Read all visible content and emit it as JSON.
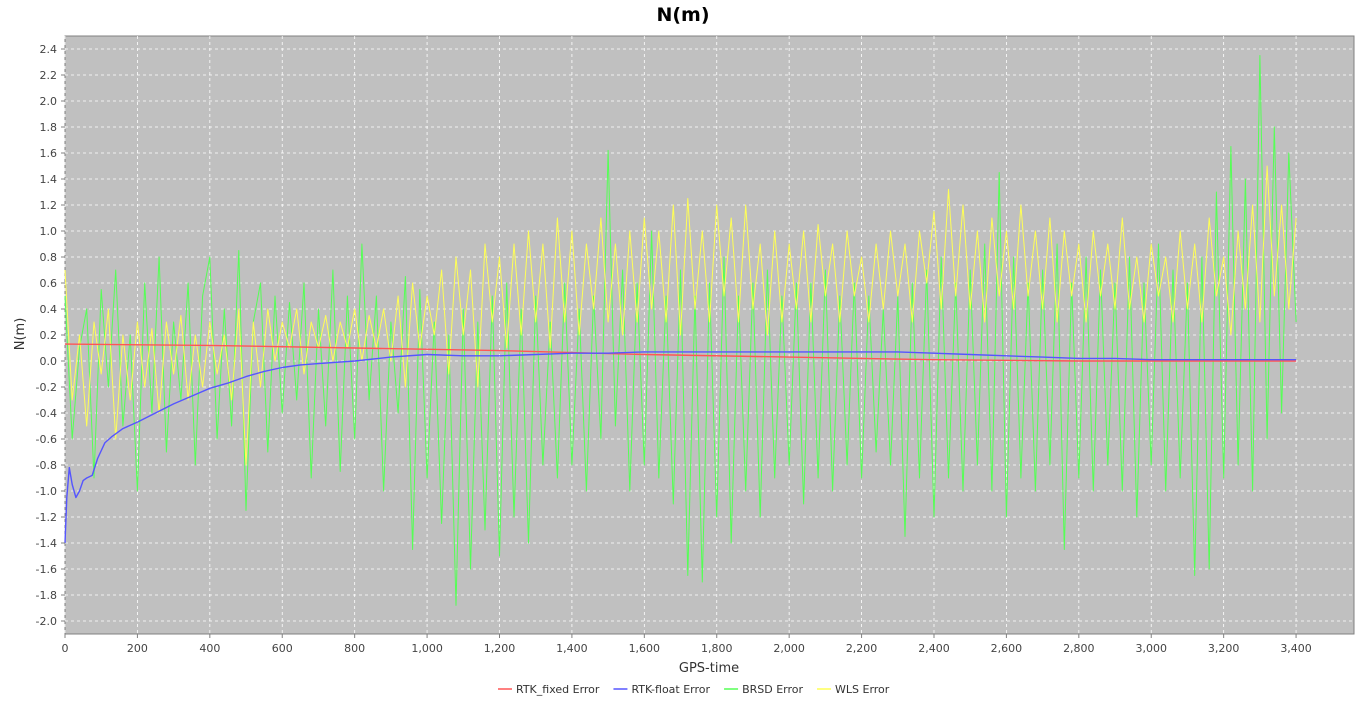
{
  "chart_data": {
    "type": "line",
    "title": "N(m)",
    "xlabel": "GPS-time",
    "ylabel": "N(m)",
    "xlim": [
      0,
      3560
    ],
    "ylim": [
      -2.1,
      2.5
    ],
    "x_ticks": [
      0,
      200,
      400,
      600,
      800,
      1000,
      1200,
      1400,
      1600,
      1800,
      2000,
      2200,
      2400,
      2600,
      2800,
      3000,
      3200,
      3400
    ],
    "x_tick_labels": [
      "0",
      "200",
      "400",
      "600",
      "800",
      "1,000",
      "1,200",
      "1,400",
      "1,600",
      "1,800",
      "2,000",
      "2,200",
      "2,400",
      "2,600",
      "2,800",
      "3,000",
      "3,200",
      "3,400"
    ],
    "y_ticks": [
      -2.0,
      -1.8,
      -1.6,
      -1.4,
      -1.2,
      -1.0,
      -0.8,
      -0.6,
      -0.4,
      -0.2,
      0.0,
      0.2,
      0.4,
      0.6,
      0.8,
      1.0,
      1.2,
      1.4,
      1.6,
      1.8,
      2.0,
      2.2,
      2.4
    ],
    "y_tick_labels": [
      "-2.0",
      "-1.8",
      "-1.6",
      "-1.4",
      "-1.2",
      "-1.0",
      "-0.8",
      "-0.6",
      "-0.4",
      "-0.2",
      "0.0",
      "0.2",
      "0.4",
      "0.6",
      "0.8",
      "1.0",
      "1.2",
      "1.4",
      "1.6",
      "1.8",
      "2.0",
      "2.2",
      "2.4"
    ],
    "grid": true,
    "background": "#c0c0c0",
    "legend_position": "bottom",
    "series": [
      {
        "name": "RTK_fixed Error",
        "color": "#ff5555",
        "x": [
          0,
          400,
          800,
          1200,
          1600,
          2000,
          2400,
          2800,
          3200,
          3400
        ],
        "y": [
          0.13,
          0.12,
          0.1,
          0.08,
          0.05,
          0.03,
          0.01,
          0.0,
          0.0,
          0.0
        ]
      },
      {
        "name": "RTK-float Error",
        "color": "#5555ff",
        "x": [
          0,
          5,
          12,
          20,
          30,
          40,
          50,
          60,
          75,
          90,
          110,
          130,
          160,
          200,
          250,
          300,
          350,
          400,
          450,
          500,
          550,
          600,
          650,
          700,
          800,
          900,
          1000,
          1100,
          1200,
          1300,
          1400,
          1500,
          1600,
          1700,
          1800,
          1900,
          2000,
          2100,
          2200,
          2300,
          2400,
          2500,
          2600,
          2700,
          2800,
          2900,
          3000,
          3100,
          3200,
          3300,
          3400
        ],
        "y": [
          -1.4,
          -1.05,
          -0.82,
          -0.95,
          -1.05,
          -1.0,
          -0.92,
          -0.9,
          -0.88,
          -0.75,
          -0.63,
          -0.58,
          -0.52,
          -0.47,
          -0.4,
          -0.33,
          -0.27,
          -0.21,
          -0.17,
          -0.12,
          -0.08,
          -0.05,
          -0.03,
          -0.02,
          0.0,
          0.03,
          0.05,
          0.04,
          0.04,
          0.05,
          0.06,
          0.06,
          0.07,
          0.07,
          0.07,
          0.07,
          0.07,
          0.07,
          0.07,
          0.07,
          0.06,
          0.05,
          0.04,
          0.03,
          0.02,
          0.02,
          0.01,
          0.01,
          0.01,
          0.01,
          0.01
        ]
      },
      {
        "name": "BRSD Error",
        "color": "#55ff55",
        "x": [
          0,
          20,
          40,
          60,
          80,
          100,
          120,
          140,
          160,
          180,
          200,
          220,
          240,
          260,
          280,
          300,
          320,
          340,
          360,
          380,
          400,
          420,
          440,
          460,
          480,
          500,
          520,
          540,
          560,
          580,
          600,
          620,
          640,
          660,
          680,
          700,
          720,
          740,
          760,
          780,
          800,
          820,
          840,
          860,
          880,
          900,
          920,
          940,
          960,
          980,
          1000,
          1020,
          1040,
          1060,
          1080,
          1100,
          1120,
          1140,
          1160,
          1180,
          1200,
          1220,
          1240,
          1260,
          1280,
          1300,
          1320,
          1340,
          1360,
          1380,
          1400,
          1420,
          1440,
          1460,
          1480,
          1500,
          1520,
          1540,
          1560,
          1580,
          1600,
          1620,
          1640,
          1660,
          1680,
          1700,
          1720,
          1740,
          1760,
          1780,
          1800,
          1820,
          1840,
          1860,
          1880,
          1900,
          1920,
          1940,
          1960,
          1980,
          2000,
          2020,
          2040,
          2060,
          2080,
          2100,
          2120,
          2140,
          2160,
          2180,
          2200,
          2220,
          2240,
          2260,
          2280,
          2300,
          2320,
          2340,
          2360,
          2380,
          2400,
          2420,
          2440,
          2460,
          2480,
          2500,
          2520,
          2540,
          2560,
          2580,
          2600,
          2620,
          2640,
          2660,
          2680,
          2700,
          2720,
          2740,
          2760,
          2780,
          2800,
          2820,
          2840,
          2860,
          2880,
          2900,
          2920,
          2940,
          2960,
          2980,
          3000,
          3020,
          3040,
          3060,
          3080,
          3100,
          3120,
          3140,
          3160,
          3180,
          3200,
          3220,
          3240,
          3260,
          3280,
          3300,
          3320,
          3340,
          3360,
          3380,
          3400
        ],
        "y": [
          0.5,
          -0.6,
          0.1,
          0.4,
          -0.9,
          0.55,
          -0.2,
          0.7,
          -0.5,
          0.2,
          -1.0,
          0.6,
          -0.4,
          0.8,
          -0.7,
          0.3,
          -0.3,
          0.6,
          -0.8,
          0.5,
          0.8,
          -0.6,
          0.4,
          -0.5,
          0.85,
          -1.15,
          0.3,
          0.6,
          -0.7,
          0.5,
          -0.4,
          0.45,
          -0.3,
          0.6,
          -0.9,
          0.4,
          -0.5,
          0.7,
          -0.85,
          0.5,
          -0.6,
          0.9,
          -0.3,
          0.5,
          -1.0,
          0.3,
          -0.4,
          0.65,
          -1.45,
          0.55,
          -0.9,
          0.3,
          -1.25,
          0.2,
          -1.88,
          0.4,
          -1.6,
          0.3,
          -1.3,
          0.5,
          -1.5,
          0.6,
          -1.2,
          0.4,
          -1.4,
          0.5,
          -0.8,
          0.3,
          -0.9,
          0.6,
          -0.8,
          0.4,
          -1.0,
          0.5,
          -0.6,
          1.62,
          -0.5,
          0.7,
          -1.0,
          0.6,
          -0.8,
          1.0,
          -0.9,
          0.5,
          -1.1,
          0.7,
          -1.65,
          0.5,
          -1.7,
          0.6,
          -1.2,
          0.8,
          -1.4,
          0.5,
          -1.0,
          0.6,
          -1.2,
          0.7,
          -0.9,
          0.5,
          -0.8,
          0.6,
          -1.1,
          0.6,
          -0.9,
          0.7,
          -1.0,
          0.5,
          -0.8,
          0.6,
          -0.9,
          0.5,
          -0.7,
          0.4,
          -0.8,
          0.5,
          -1.35,
          0.6,
          -0.9,
          0.7,
          -1.2,
          0.8,
          -0.9,
          0.6,
          -1.0,
          0.7,
          -0.8,
          0.9,
          -1.0,
          1.45,
          -1.2,
          0.8,
          -0.9,
          0.6,
          -1.0,
          0.7,
          -0.8,
          0.9,
          -1.45,
          0.6,
          -0.9,
          0.8,
          -1.0,
          0.7,
          -0.8,
          0.6,
          -1.0,
          0.8,
          -1.2,
          0.6,
          -0.8,
          0.9,
          -1.0,
          0.7,
          -0.9,
          0.6,
          -1.65,
          0.8,
          -1.6,
          1.3,
          -0.9,
          1.65,
          -0.8,
          1.4,
          -1.0,
          2.35,
          -0.6,
          1.8,
          -0.4,
          1.6,
          0.3
        ]
      },
      {
        "name": "WLS Error",
        "color": "#ffff55",
        "x": [
          0,
          20,
          40,
          60,
          80,
          100,
          120,
          140,
          160,
          180,
          200,
          220,
          240,
          260,
          280,
          300,
          320,
          340,
          360,
          380,
          400,
          420,
          440,
          460,
          480,
          500,
          520,
          540,
          560,
          580,
          600,
          620,
          640,
          660,
          680,
          700,
          720,
          740,
          760,
          780,
          800,
          820,
          840,
          860,
          880,
          900,
          920,
          940,
          960,
          980,
          1000,
          1020,
          1040,
          1060,
          1080,
          1100,
          1120,
          1140,
          1160,
          1180,
          1200,
          1220,
          1240,
          1260,
          1280,
          1300,
          1320,
          1340,
          1360,
          1380,
          1400,
          1420,
          1440,
          1460,
          1480,
          1500,
          1520,
          1540,
          1560,
          1580,
          1600,
          1620,
          1640,
          1660,
          1680,
          1700,
          1720,
          1740,
          1760,
          1780,
          1800,
          1820,
          1840,
          1860,
          1880,
          1900,
          1920,
          1940,
          1960,
          1980,
          2000,
          2020,
          2040,
          2060,
          2080,
          2100,
          2120,
          2140,
          2160,
          2180,
          2200,
          2220,
          2240,
          2260,
          2280,
          2300,
          2320,
          2340,
          2360,
          2380,
          2400,
          2420,
          2440,
          2460,
          2480,
          2500,
          2520,
          2540,
          2560,
          2580,
          2600,
          2620,
          2640,
          2660,
          2680,
          2700,
          2720,
          2740,
          2760,
          2780,
          2800,
          2820,
          2840,
          2860,
          2880,
          2900,
          2920,
          2940,
          2960,
          2980,
          3000,
          3020,
          3040,
          3060,
          3080,
          3100,
          3120,
          3140,
          3160,
          3180,
          3200,
          3220,
          3240,
          3260,
          3280,
          3300,
          3320,
          3340,
          3360,
          3380,
          3400
        ],
        "y": [
          0.7,
          -0.3,
          0.2,
          -0.5,
          0.3,
          -0.1,
          0.4,
          -0.6,
          0.2,
          -0.3,
          0.3,
          -0.2,
          0.25,
          -0.4,
          0.3,
          -0.1,
          0.35,
          -0.3,
          0.2,
          -0.2,
          0.3,
          -0.1,
          0.2,
          -0.3,
          0.4,
          -0.8,
          0.3,
          -0.2,
          0.4,
          0.0,
          0.3,
          0.1,
          0.4,
          -0.1,
          0.3,
          0.1,
          0.35,
          0.0,
          0.3,
          0.1,
          0.4,
          0.0,
          0.35,
          0.1,
          0.4,
          0.0,
          0.5,
          -0.2,
          0.6,
          0.1,
          0.5,
          0.2,
          0.7,
          -0.1,
          0.8,
          0.2,
          0.7,
          -0.2,
          0.9,
          0.3,
          0.8,
          0.1,
          0.9,
          0.2,
          1.0,
          0.3,
          0.9,
          0.1,
          1.1,
          0.3,
          1.0,
          0.2,
          0.9,
          0.4,
          1.1,
          0.3,
          0.9,
          0.2,
          1.0,
          0.3,
          1.1,
          0.4,
          1.0,
          0.3,
          1.2,
          0.2,
          1.25,
          0.4,
          1.0,
          0.3,
          1.2,
          0.5,
          1.1,
          0.3,
          1.2,
          0.4,
          0.9,
          0.2,
          1.0,
          0.3,
          0.9,
          0.4,
          1.0,
          0.3,
          1.05,
          0.5,
          0.9,
          0.3,
          1.0,
          0.5,
          0.8,
          0.3,
          0.9,
          0.4,
          1.0,
          0.5,
          0.9,
          0.3,
          1.0,
          0.6,
          1.15,
          0.4,
          1.32,
          0.5,
          1.2,
          0.4,
          1.0,
          0.3,
          1.1,
          0.5,
          1.0,
          0.4,
          1.2,
          0.5,
          1.0,
          0.4,
          1.1,
          0.3,
          1.0,
          0.5,
          0.9,
          0.3,
          1.0,
          0.5,
          0.9,
          0.4,
          1.1,
          0.4,
          0.8,
          0.3,
          0.9,
          0.5,
          0.8,
          0.3,
          1.0,
          0.4,
          0.9,
          0.3,
          1.1,
          0.5,
          0.8,
          0.2,
          1.0,
          0.4,
          1.2,
          0.3,
          1.5,
          0.5,
          1.2,
          0.4,
          1.1
        ]
      }
    ]
  }
}
